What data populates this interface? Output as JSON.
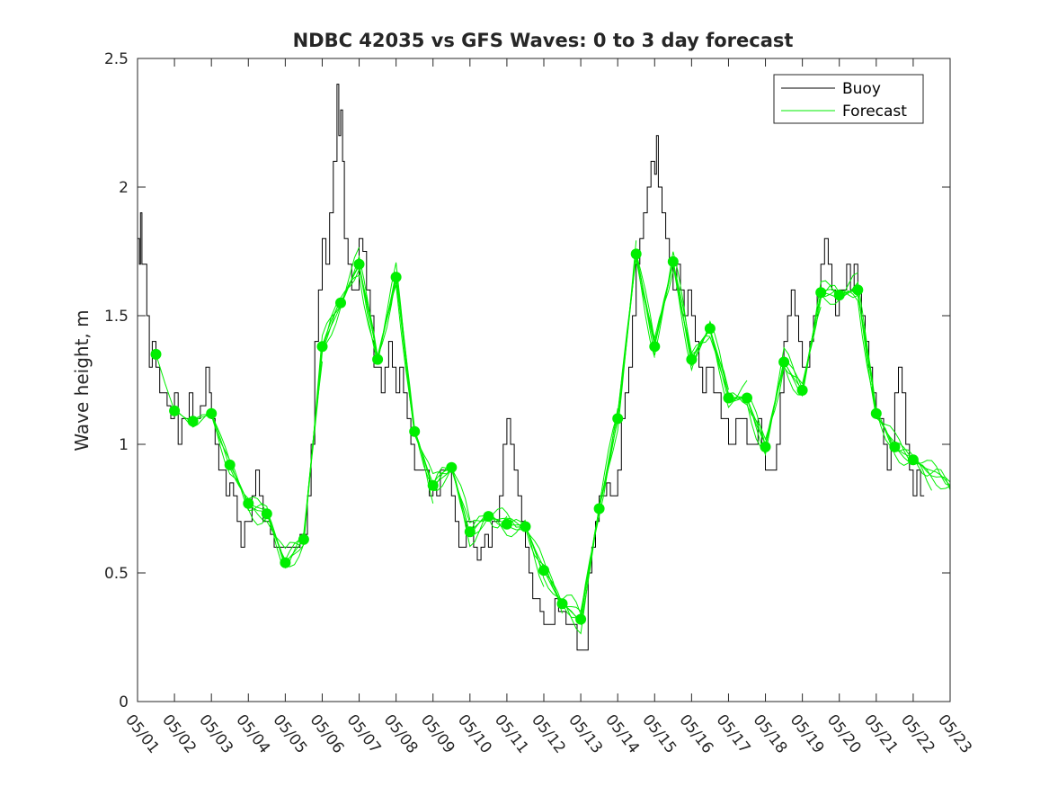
{
  "colors": {
    "buoy": "#000000",
    "forecast": "#00ee00",
    "axes": "#262626"
  },
  "chart_data": {
    "type": "line",
    "title": "NDBC 42035 vs GFS Waves: 0 to 3 day forecast",
    "xlabel": "",
    "ylabel": "Wave height, m",
    "ylim": [
      0,
      2.5
    ],
    "yticks": [
      0,
      0.5,
      1,
      1.5,
      2,
      2.5
    ],
    "ytick_labels": [
      "0",
      "0.5",
      "1",
      "1.5",
      "2",
      "2.5"
    ],
    "xlim": [
      0,
      22
    ],
    "xtick_labels": [
      "05/01",
      "05/02",
      "05/03",
      "05/04",
      "05/05",
      "05/06",
      "05/07",
      "05/08",
      "05/09",
      "05/10",
      "05/11",
      "05/12",
      "05/13",
      "05/14",
      "05/15",
      "05/16",
      "05/17",
      "05/18",
      "05/19",
      "05/20",
      "05/21",
      "05/22",
      "05/23"
    ],
    "legend": {
      "placement": "top-right",
      "entries": [
        "Buoy",
        "Forecast"
      ]
    },
    "grid": false,
    "series": [
      {
        "name": "Buoy",
        "x_unit": "days since 05/01",
        "points": [
          [
            0.0,
            1.8
          ],
          [
            0.05,
            1.7
          ],
          [
            0.08,
            1.9
          ],
          [
            0.12,
            1.7
          ],
          [
            0.18,
            1.7
          ],
          [
            0.25,
            1.5
          ],
          [
            0.32,
            1.3
          ],
          [
            0.4,
            1.4
          ],
          [
            0.5,
            1.3
          ],
          [
            0.6,
            1.2
          ],
          [
            0.7,
            1.2
          ],
          [
            0.8,
            1.15
          ],
          [
            0.9,
            1.1
          ],
          [
            1.0,
            1.2
          ],
          [
            1.1,
            1.0
          ],
          [
            1.2,
            1.1
          ],
          [
            1.3,
            1.1
          ],
          [
            1.4,
            1.2
          ],
          [
            1.5,
            1.1
          ],
          [
            1.6,
            1.1
          ],
          [
            1.7,
            1.15
          ],
          [
            1.85,
            1.3
          ],
          [
            1.95,
            1.2
          ],
          [
            2.0,
            1.1
          ],
          [
            2.1,
            1.0
          ],
          [
            2.2,
            0.9
          ],
          [
            2.3,
            0.9
          ],
          [
            2.4,
            0.8
          ],
          [
            2.5,
            0.85
          ],
          [
            2.6,
            0.8
          ],
          [
            2.7,
            0.7
          ],
          [
            2.8,
            0.6
          ],
          [
            2.9,
            0.7
          ],
          [
            3.0,
            0.7
          ],
          [
            3.1,
            0.8
          ],
          [
            3.2,
            0.9
          ],
          [
            3.3,
            0.8
          ],
          [
            3.4,
            0.7
          ],
          [
            3.5,
            0.7
          ],
          [
            3.6,
            0.65
          ],
          [
            3.7,
            0.6
          ],
          [
            3.8,
            0.6
          ],
          [
            3.9,
            0.6
          ],
          [
            4.0,
            0.6
          ],
          [
            4.1,
            0.6
          ],
          [
            4.2,
            0.6
          ],
          [
            4.3,
            0.6
          ],
          [
            4.4,
            0.65
          ],
          [
            4.5,
            0.65
          ],
          [
            4.6,
            0.8
          ],
          [
            4.7,
            1.0
          ],
          [
            4.8,
            1.4
          ],
          [
            4.9,
            1.6
          ],
          [
            5.0,
            1.8
          ],
          [
            5.1,
            1.7
          ],
          [
            5.2,
            1.9
          ],
          [
            5.3,
            2.1
          ],
          [
            5.4,
            2.4
          ],
          [
            5.45,
            2.2
          ],
          [
            5.5,
            2.3
          ],
          [
            5.55,
            2.1
          ],
          [
            5.6,
            1.8
          ],
          [
            5.7,
            1.7
          ],
          [
            5.8,
            1.6
          ],
          [
            5.9,
            1.6
          ],
          [
            6.0,
            1.8
          ],
          [
            6.1,
            1.75
          ],
          [
            6.2,
            1.6
          ],
          [
            6.3,
            1.5
          ],
          [
            6.4,
            1.3
          ],
          [
            6.5,
            1.3
          ],
          [
            6.6,
            1.2
          ],
          [
            6.7,
            1.3
          ],
          [
            6.8,
            1.4
          ],
          [
            6.9,
            1.3
          ],
          [
            7.0,
            1.2
          ],
          [
            7.1,
            1.3
          ],
          [
            7.2,
            1.2
          ],
          [
            7.3,
            1.1
          ],
          [
            7.4,
            1.0
          ],
          [
            7.5,
            0.9
          ],
          [
            7.6,
            0.9
          ],
          [
            7.7,
            0.9
          ],
          [
            7.8,
            0.9
          ],
          [
            7.9,
            0.8
          ],
          [
            8.0,
            0.85
          ],
          [
            8.1,
            0.8
          ],
          [
            8.2,
            0.9
          ],
          [
            8.3,
            0.9
          ],
          [
            8.4,
            0.9
          ],
          [
            8.5,
            0.8
          ],
          [
            8.6,
            0.7
          ],
          [
            8.7,
            0.6
          ],
          [
            8.8,
            0.6
          ],
          [
            8.9,
            0.7
          ],
          [
            9.0,
            0.7
          ],
          [
            9.1,
            0.6
          ],
          [
            9.2,
            0.55
          ],
          [
            9.3,
            0.6
          ],
          [
            9.4,
            0.65
          ],
          [
            9.5,
            0.6
          ],
          [
            9.6,
            0.7
          ],
          [
            9.7,
            0.7
          ],
          [
            9.8,
            0.8
          ],
          [
            9.9,
            1.0
          ],
          [
            10.0,
            1.1
          ],
          [
            10.1,
            1.0
          ],
          [
            10.2,
            0.9
          ],
          [
            10.3,
            0.8
          ],
          [
            10.4,
            0.7
          ],
          [
            10.5,
            0.6
          ],
          [
            10.6,
            0.5
          ],
          [
            10.7,
            0.4
          ],
          [
            10.8,
            0.4
          ],
          [
            10.9,
            0.35
          ],
          [
            11.0,
            0.3
          ],
          [
            11.1,
            0.3
          ],
          [
            11.2,
            0.3
          ],
          [
            11.3,
            0.4
          ],
          [
            11.4,
            0.35
          ],
          [
            11.5,
            0.35
          ],
          [
            11.6,
            0.3
          ],
          [
            11.7,
            0.3
          ],
          [
            11.8,
            0.3
          ],
          [
            11.9,
            0.2
          ],
          [
            12.0,
            0.2
          ],
          [
            12.1,
            0.2
          ],
          [
            12.2,
            0.5
          ],
          [
            12.3,
            0.6
          ],
          [
            12.4,
            0.7
          ],
          [
            12.5,
            0.8
          ],
          [
            12.6,
            0.8
          ],
          [
            12.7,
            0.85
          ],
          [
            12.8,
            0.8
          ],
          [
            12.9,
            0.8
          ],
          [
            13.0,
            0.9
          ],
          [
            13.1,
            1.1
          ],
          [
            13.2,
            1.2
          ],
          [
            13.3,
            1.3
          ],
          [
            13.4,
            1.5
          ],
          [
            13.5,
            1.7
          ],
          [
            13.6,
            1.8
          ],
          [
            13.7,
            1.9
          ],
          [
            13.8,
            2.0
          ],
          [
            13.9,
            2.1
          ],
          [
            14.0,
            2.05
          ],
          [
            14.05,
            2.2
          ],
          [
            14.1,
            2.0
          ],
          [
            14.2,
            1.9
          ],
          [
            14.3,
            1.8
          ],
          [
            14.4,
            1.7
          ],
          [
            14.5,
            1.6
          ],
          [
            14.6,
            1.7
          ],
          [
            14.7,
            1.6
          ],
          [
            14.8,
            1.5
          ],
          [
            14.9,
            1.6
          ],
          [
            15.0,
            1.5
          ],
          [
            15.1,
            1.4
          ],
          [
            15.2,
            1.3
          ],
          [
            15.3,
            1.2
          ],
          [
            15.4,
            1.3
          ],
          [
            15.5,
            1.3
          ],
          [
            15.6,
            1.2
          ],
          [
            15.7,
            1.2
          ],
          [
            15.8,
            1.1
          ],
          [
            15.9,
            1.1
          ],
          [
            16.0,
            1.0
          ],
          [
            16.1,
            1.0
          ],
          [
            16.2,
            1.1
          ],
          [
            16.3,
            1.1
          ],
          [
            16.4,
            1.1
          ],
          [
            16.5,
            1.0
          ],
          [
            16.6,
            1.0
          ],
          [
            16.7,
            1.0
          ],
          [
            16.8,
            1.1
          ],
          [
            16.9,
            1.0
          ],
          [
            17.0,
            0.9
          ],
          [
            17.1,
            0.9
          ],
          [
            17.2,
            0.9
          ],
          [
            17.3,
            1.0
          ],
          [
            17.4,
            1.2
          ],
          [
            17.5,
            1.4
          ],
          [
            17.6,
            1.5
          ],
          [
            17.7,
            1.6
          ],
          [
            17.8,
            1.5
          ],
          [
            17.9,
            1.4
          ],
          [
            18.0,
            1.3
          ],
          [
            18.1,
            1.3
          ],
          [
            18.2,
            1.4
          ],
          [
            18.3,
            1.5
          ],
          [
            18.4,
            1.6
          ],
          [
            18.5,
            1.7
          ],
          [
            18.6,
            1.8
          ],
          [
            18.7,
            1.7
          ],
          [
            18.8,
            1.6
          ],
          [
            18.9,
            1.5
          ],
          [
            19.0,
            1.6
          ],
          [
            19.1,
            1.6
          ],
          [
            19.2,
            1.7
          ],
          [
            19.3,
            1.6
          ],
          [
            19.4,
            1.7
          ],
          [
            19.5,
            1.6
          ],
          [
            19.6,
            1.5
          ],
          [
            19.7,
            1.4
          ],
          [
            19.8,
            1.3
          ],
          [
            19.9,
            1.2
          ],
          [
            20.0,
            1.1
          ],
          [
            20.1,
            1.1
          ],
          [
            20.2,
            1.0
          ],
          [
            20.3,
            0.9
          ],
          [
            20.4,
            1.0
          ],
          [
            20.5,
            1.2
          ],
          [
            20.6,
            1.3
          ],
          [
            20.7,
            1.2
          ],
          [
            20.8,
            1.0
          ],
          [
            20.9,
            0.9
          ],
          [
            21.0,
            0.8
          ],
          [
            21.1,
            0.9
          ],
          [
            21.2,
            0.8
          ],
          [
            21.3,
            0.8
          ]
        ]
      },
      {
        "name": "Forecast",
        "x_unit": "days since 05/01",
        "points": [
          [
            0.5,
            1.35
          ],
          [
            1.0,
            1.13
          ],
          [
            1.5,
            1.09
          ],
          [
            2.0,
            1.12
          ],
          [
            2.5,
            0.92
          ],
          [
            3.0,
            0.77
          ],
          [
            3.5,
            0.73
          ],
          [
            4.0,
            0.54
          ],
          [
            4.5,
            0.63
          ],
          [
            5.0,
            1.38
          ],
          [
            5.5,
            1.55
          ],
          [
            6.0,
            1.7
          ],
          [
            6.5,
            1.33
          ],
          [
            7.0,
            1.65
          ],
          [
            7.5,
            1.05
          ],
          [
            8.0,
            0.84
          ],
          [
            8.5,
            0.91
          ],
          [
            9.0,
            0.66
          ],
          [
            9.5,
            0.72
          ],
          [
            10.0,
            0.69
          ],
          [
            10.5,
            0.68
          ],
          [
            11.0,
            0.51
          ],
          [
            11.5,
            0.38
          ],
          [
            12.0,
            0.32
          ],
          [
            12.5,
            0.75
          ],
          [
            13.0,
            1.1
          ],
          [
            13.5,
            1.74
          ],
          [
            14.0,
            1.38
          ],
          [
            14.5,
            1.71
          ],
          [
            15.0,
            1.33
          ],
          [
            15.5,
            1.45
          ],
          [
            16.0,
            1.18
          ],
          [
            16.5,
            1.18
          ],
          [
            17.0,
            0.99
          ],
          [
            17.5,
            1.32
          ],
          [
            18.0,
            1.21
          ],
          [
            18.5,
            1.59
          ],
          [
            19.0,
            1.58
          ],
          [
            19.5,
            1.6
          ],
          [
            20.0,
            1.12
          ],
          [
            20.5,
            0.99
          ],
          [
            21.0,
            0.94
          ]
        ]
      }
    ]
  }
}
